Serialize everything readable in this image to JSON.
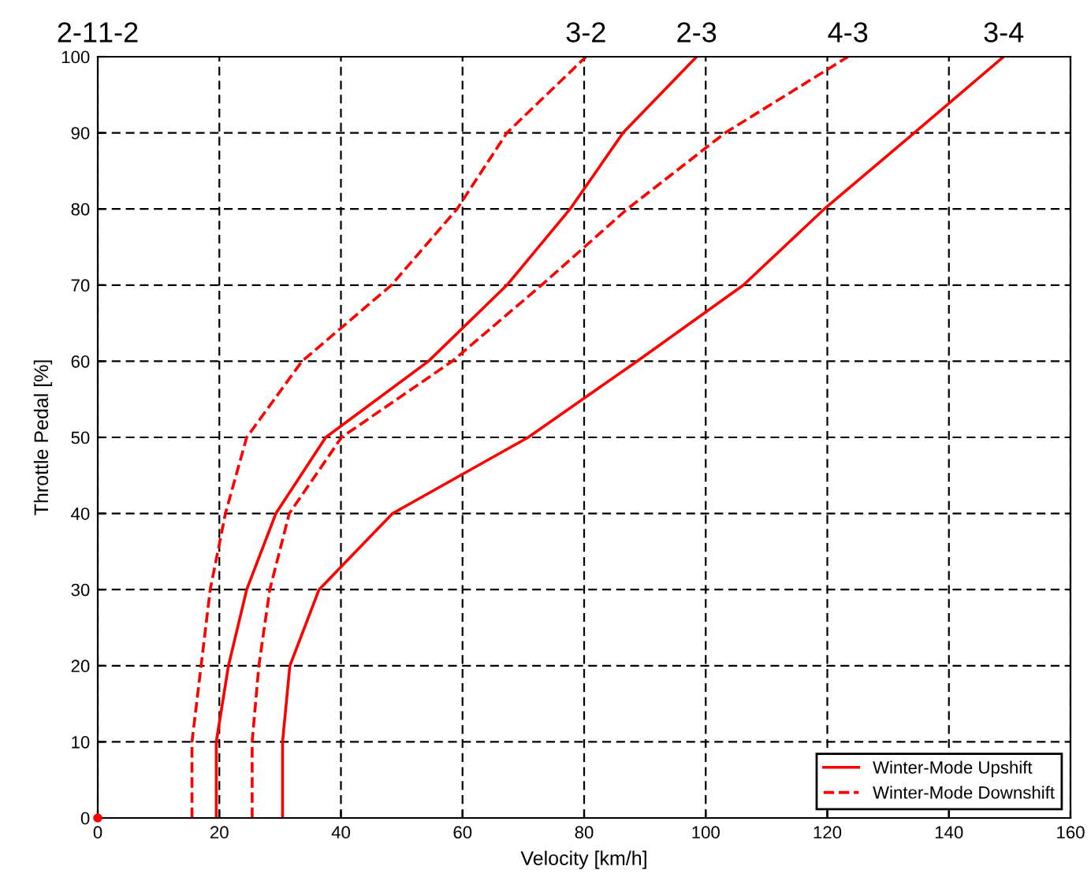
{
  "chart_data": {
    "type": "line",
    "xlabel": "Velocity [km/h]",
    "ylabel": "Throttle Pedal [%]",
    "xlim": [
      0,
      160
    ],
    "ylim": [
      0,
      100
    ],
    "xticks": [
      0,
      20,
      40,
      60,
      80,
      100,
      120,
      140,
      160
    ],
    "yticks": [
      0,
      10,
      20,
      30,
      40,
      50,
      60,
      70,
      80,
      90,
      100
    ],
    "grid": true,
    "legend": "bottom right",
    "marker": "none",
    "series": [
      {
        "name": "Winter-Mode Upshift",
        "color": "#ff0000",
        "line_style": "solid",
        "x": [
          19.5,
          19.5,
          21.5,
          24.5,
          29.3,
          37.5,
          54.4,
          67.3,
          77.7,
          86.4,
          98.5,
          null,
          30.4,
          30.4,
          31.6,
          36.4,
          48.5,
          70.8,
          88.7,
          106.2,
          119.5,
          134.3,
          149
        ],
        "values": [
          0,
          10,
          20,
          30,
          40,
          50,
          60,
          70,
          80,
          90,
          100,
          null,
          0,
          10,
          20,
          30,
          40,
          50,
          60,
          70,
          80,
          90,
          100
        ]
      },
      {
        "name": "Winter-Mode Downshift",
        "color": "#ff0000",
        "line_style": "dashed",
        "x": [
          15.5,
          15.5,
          17,
          18.5,
          21,
          24.5,
          33.6,
          48.3,
          59.1,
          67.3,
          80.3,
          null,
          25.4,
          25.4,
          26.5,
          28.3,
          31.5,
          40.1,
          58.3,
          73,
          87.1,
          103.2,
          123.4
        ],
        "values": [
          0,
          10,
          20,
          30,
          40,
          50,
          60,
          70,
          80,
          90,
          100,
          null,
          0,
          10,
          20,
          30,
          40,
          50,
          60,
          70,
          80,
          90,
          100
        ]
      },
      {
        "type": "scatter",
        "color": "#ff0000",
        "marker": "circle",
        "x": [
          0
        ],
        "values": [
          0
        ]
      }
    ],
    "annotations": [
      "2-1",
      "1-2",
      {
        "text": "3-2",
        "x": 80.3,
        "y": 100
      },
      {
        "text": "2-3",
        "x": 98.5,
        "y": 100
      },
      {
        "text": "4-3",
        "x": 123.4,
        "y": 100
      },
      {
        "text": "3-4",
        "x": 149,
        "y": 100
      }
    ]
  }
}
